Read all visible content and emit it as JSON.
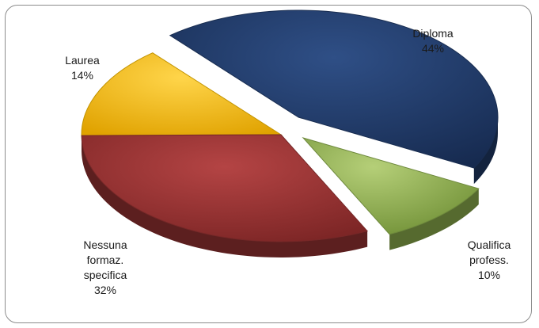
{
  "chart_data": {
    "type": "pie",
    "title": "",
    "slices": [
      {
        "label": [
          "Diploma"
        ],
        "value": 44,
        "value_label": "44%",
        "color": "#1f3864"
      },
      {
        "label": [
          "Qualifica",
          "profess."
        ],
        "value": 10,
        "value_label": "10%",
        "color": "#8aab4c"
      },
      {
        "label": [
          "Nessuna",
          "formaz.",
          "specifica"
        ],
        "value": 32,
        "value_label": "32%",
        "color": "#943232"
      },
      {
        "label": [
          "Laurea"
        ],
        "value": 14,
        "value_label": "14%",
        "color": "#f2b800"
      }
    ]
  }
}
